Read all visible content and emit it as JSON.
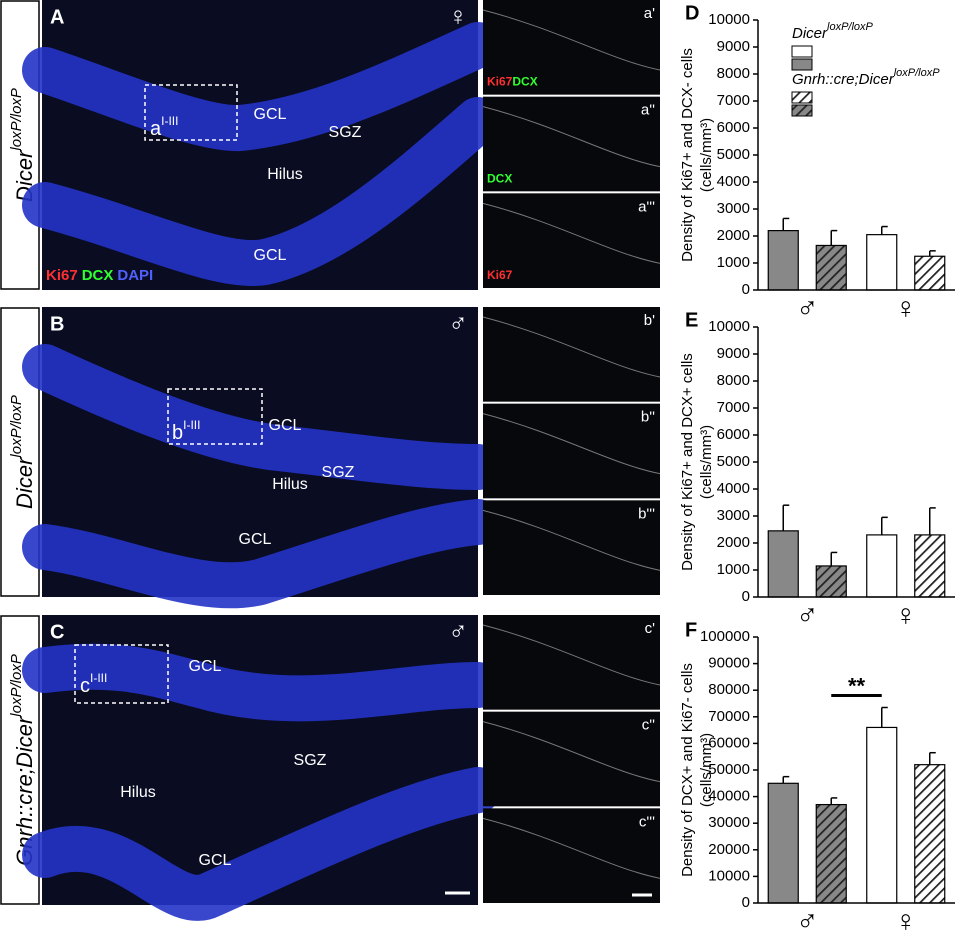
{
  "panels": [
    {
      "letter": "A",
      "label": "Dicer",
      "label_sup": "loxP/loxP",
      "sex": "♀",
      "regions": [
        "GCL",
        "SGZ",
        "Hilus",
        "GCL"
      ],
      "box": "a",
      "box_sup": "I-III",
      "stain": [
        {
          "text": "Ki67",
          "color": "#ff3030"
        },
        {
          "text": "DCX",
          "color": "#30ff30"
        },
        {
          "text": "DAPI",
          "color": "#5060ff"
        }
      ],
      "sub": [
        {
          "label": "a'",
          "stain": [
            {
              "text": "Ki67",
              "color": "#ff3030"
            },
            {
              "text": "DCX",
              "color": "#30ff30"
            }
          ]
        },
        {
          "label": "a''",
          "stain": [
            {
              "text": "DCX",
              "color": "#30ff30"
            }
          ]
        },
        {
          "label": "a'''",
          "stain": [
            {
              "text": "Ki67",
              "color": "#ff3030"
            }
          ]
        }
      ]
    },
    {
      "letter": "B",
      "label": "Dicer",
      "label_sup": "loxP/loxP",
      "sex": "♂",
      "regions": [
        "GCL",
        "SGZ",
        "Hilus",
        "GCL"
      ],
      "box": "b",
      "box_sup": "I-III",
      "stain": [],
      "sub": [
        {
          "label": "b'",
          "stain": []
        },
        {
          "label": "b''",
          "stain": []
        },
        {
          "label": "b'''",
          "stain": []
        }
      ]
    },
    {
      "letter": "C",
      "label": "Gnrh::cre;Dicer",
      "label_sup": "loxP/loxP",
      "sex": "♂",
      "regions": [
        "GCL",
        "SGZ",
        "Hilus",
        "GCL"
      ],
      "box": "c",
      "box_sup": "I-III",
      "stain": [],
      "sub": [
        {
          "label": "c'",
          "stain": []
        },
        {
          "label": "c''",
          "stain": []
        },
        {
          "label": "c'''",
          "stain": []
        }
      ]
    }
  ],
  "chart_data": [
    {
      "type": "bar",
      "letter": "D",
      "ylabel": "Density of Ki67+ and DCX- cells",
      "ylabel_unit": "(cells/mm³)",
      "categories": [
        "♂",
        "♀"
      ],
      "legend": true,
      "ylim": [
        0,
        10000
      ],
      "yticks": [
        0,
        1000,
        2000,
        3000,
        4000,
        5000,
        6000,
        7000,
        8000,
        9000,
        10000
      ],
      "series": [
        {
          "name": "Dicer",
          "name_sup": "loxP/loxP",
          "colors": [
            "#888888",
            "#ffffff"
          ],
          "hatch": false,
          "values": [
            2200,
            2050
          ],
          "errors": [
            450,
            300
          ]
        },
        {
          "name": "Gnrh::cre;Dicer",
          "name_sup": "loxP/loxP",
          "colors": [
            "#888888",
            "#ffffff"
          ],
          "hatch": true,
          "values": [
            1650,
            1250
          ],
          "errors": [
            550,
            200
          ]
        }
      ]
    },
    {
      "type": "bar",
      "letter": "E",
      "ylabel": "Density of Ki67+ and DCX+ cells",
      "ylabel_unit": "(cells/mm³)",
      "categories": [
        "♂",
        "♀"
      ],
      "legend": false,
      "ylim": [
        0,
        10000
      ],
      "yticks": [
        0,
        1000,
        2000,
        3000,
        4000,
        5000,
        6000,
        7000,
        8000,
        9000,
        10000
      ],
      "series": [
        {
          "name": "Dicer",
          "name_sup": "loxP/loxP",
          "colors": [
            "#888888",
            "#ffffff"
          ],
          "hatch": false,
          "values": [
            2450,
            2300
          ],
          "errors": [
            950,
            650
          ]
        },
        {
          "name": "Gnrh::cre;Dicer",
          "name_sup": "loxP/loxP",
          "colors": [
            "#888888",
            "#ffffff"
          ],
          "hatch": true,
          "values": [
            1150,
            2300
          ],
          "errors": [
            500,
            1000
          ]
        }
      ]
    },
    {
      "type": "bar",
      "letter": "F",
      "ylabel": "Density of DCX+ and Ki67- cells",
      "ylabel_unit": "(cells/mm³)",
      "categories": [
        "♂",
        "♀"
      ],
      "legend": false,
      "annotation": "**",
      "ylim": [
        0,
        100000
      ],
      "yticks": [
        0,
        10000,
        20000,
        30000,
        40000,
        50000,
        60000,
        70000,
        80000,
        90000,
        100000
      ],
      "series": [
        {
          "name": "Dicer",
          "name_sup": "loxP/loxP",
          "colors": [
            "#888888",
            "#ffffff"
          ],
          "hatch": false,
          "values": [
            45000,
            66000
          ],
          "errors": [
            2500,
            7500
          ]
        },
        {
          "name": "Gnrh::cre;Dicer",
          "name_sup": "loxP/loxP",
          "colors": [
            "#888888",
            "#ffffff"
          ],
          "hatch": true,
          "values": [
            37000,
            52000
          ],
          "errors": [
            2500,
            4500
          ]
        }
      ]
    }
  ]
}
